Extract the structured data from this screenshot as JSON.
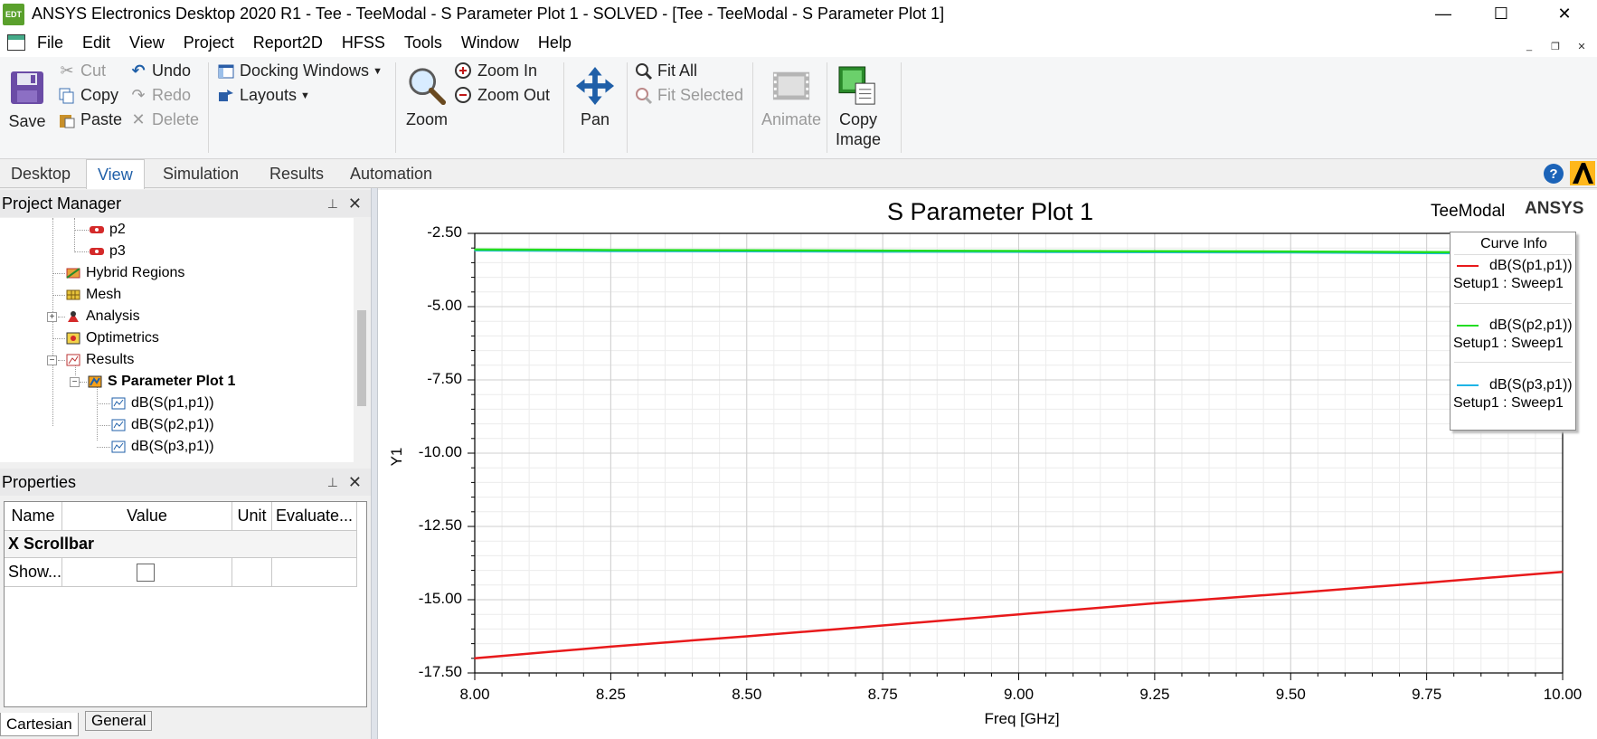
{
  "window": {
    "app_icon_text": "EDT",
    "title": "ANSYS Electronics Desktop 2020 R1 - Tee - TeeModal - S Parameter Plot 1 - SOLVED - [Tee - TeeModal - S Parameter Plot 1]",
    "controls": {
      "minimize": "—",
      "maximize": "☐",
      "close": "✕"
    }
  },
  "menu": [
    "File",
    "Edit",
    "View",
    "Project",
    "Report2D",
    "HFSS",
    "Tools",
    "Window",
    "Help"
  ],
  "mdi_controls": {
    "minimize": "_",
    "restore": "❐",
    "close": "✕"
  },
  "ribbon": {
    "save": "Save",
    "cut": "Cut",
    "copy": "Copy",
    "paste": "Paste",
    "undo": "Undo",
    "redo": "Redo",
    "delete": "Delete",
    "docking_windows": "Docking Windows",
    "layouts": "Layouts",
    "zoom": "Zoom",
    "zoom_in": "Zoom In",
    "zoom_out": "Zoom Out",
    "pan": "Pan",
    "fit_all": "Fit All",
    "fit_selected": "Fit Selected",
    "animate": "Animate",
    "copy_image": [
      "Copy",
      "Image"
    ]
  },
  "tabs": [
    {
      "label": "Desktop",
      "active": false
    },
    {
      "label": "View",
      "active": true
    },
    {
      "label": "Simulation",
      "active": false
    },
    {
      "label": "Results",
      "active": false
    },
    {
      "label": "Automation",
      "active": false
    }
  ],
  "help_icon": "?",
  "project_manager": {
    "title": "Project Manager",
    "pin": "📌",
    "close": "✕",
    "tree": [
      {
        "label": "p2",
        "icon": "port-icon",
        "bold": false
      },
      {
        "label": "p3",
        "icon": "port-icon",
        "bold": false
      },
      {
        "label": "Hybrid Regions",
        "icon": "hybrid-regions-icon",
        "bold": false
      },
      {
        "label": "Mesh",
        "icon": "mesh-icon",
        "bold": false
      },
      {
        "label": "Analysis",
        "icon": "analysis-icon",
        "bold": false,
        "expander": "+"
      },
      {
        "label": "Optimetrics",
        "icon": "optimetrics-icon",
        "bold": false
      },
      {
        "label": "Results",
        "icon": "results-icon",
        "bold": false,
        "expander": "−"
      },
      {
        "label": "S Parameter Plot 1",
        "icon": "plot-icon",
        "bold": true,
        "expander": "−"
      },
      {
        "label": "dB(S(p1,p1))",
        "icon": "trace-icon",
        "bold": false
      },
      {
        "label": "dB(S(p2,p1))",
        "icon": "trace-icon",
        "bold": false
      },
      {
        "label": "dB(S(p3,p1))",
        "icon": "trace-icon",
        "bold": false
      }
    ]
  },
  "properties": {
    "title": "Properties",
    "pin": "📌",
    "close": "✕",
    "columns": [
      "Name",
      "Value",
      "Unit",
      "Evaluate..."
    ],
    "group": "X Scrollbar",
    "row": {
      "name": "Show...",
      "checked": false
    },
    "bottom_tabs": [
      "Cartesian",
      "General"
    ]
  },
  "plot": {
    "design": "TeeModal",
    "vendor": "ANSYS",
    "legend": {
      "title": "Curve Info",
      "entries": [
        {
          "name": "dB(S(p1,p1))",
          "sweep": "Setup1 : Sweep1",
          "color": "#e8191b"
        },
        {
          "name": "dB(S(p2,p1))",
          "sweep": "Setup1 : Sweep1",
          "color": "#22dd22"
        },
        {
          "name": "dB(S(p3,p1))",
          "sweep": "Setup1 : Sweep1",
          "color": "#1eb4e6"
        }
      ]
    }
  },
  "chart_data": {
    "type": "line",
    "title": "S Parameter Plot 1",
    "xlabel": "Freq [GHz]",
    "ylabel": "Y1",
    "xlim": [
      8.0,
      10.0
    ],
    "ylim": [
      -17.5,
      -2.5
    ],
    "x_ticks": [
      "8.00",
      "8.25",
      "8.50",
      "8.75",
      "9.00",
      "9.25",
      "9.50",
      "9.75",
      "10.00"
    ],
    "y_ticks": [
      "-2.50",
      "-5.00",
      "-7.50",
      "-10.00",
      "-12.50",
      "-15.00",
      "-17.50"
    ],
    "grid": true,
    "legend_position": "top-right",
    "x": [
      8.0,
      8.25,
      8.5,
      8.75,
      9.0,
      9.25,
      9.5,
      9.75,
      10.0
    ],
    "series": [
      {
        "name": "dB(S(p1,p1))",
        "color": "#e8191b",
        "values": [
          -17.0,
          -16.6,
          -16.25,
          -15.88,
          -15.5,
          -15.12,
          -14.78,
          -14.42,
          -14.05
        ]
      },
      {
        "name": "dB(S(p2,p1))",
        "color": "#22dd22",
        "values": [
          -3.05,
          -3.07,
          -3.08,
          -3.09,
          -3.1,
          -3.11,
          -3.12,
          -3.14,
          -3.16
        ]
      },
      {
        "name": "dB(S(p3,p1))",
        "color": "#1eb4e6",
        "values": [
          -3.08,
          -3.1,
          -3.11,
          -3.12,
          -3.13,
          -3.14,
          -3.15,
          -3.17,
          -3.19
        ]
      }
    ]
  }
}
